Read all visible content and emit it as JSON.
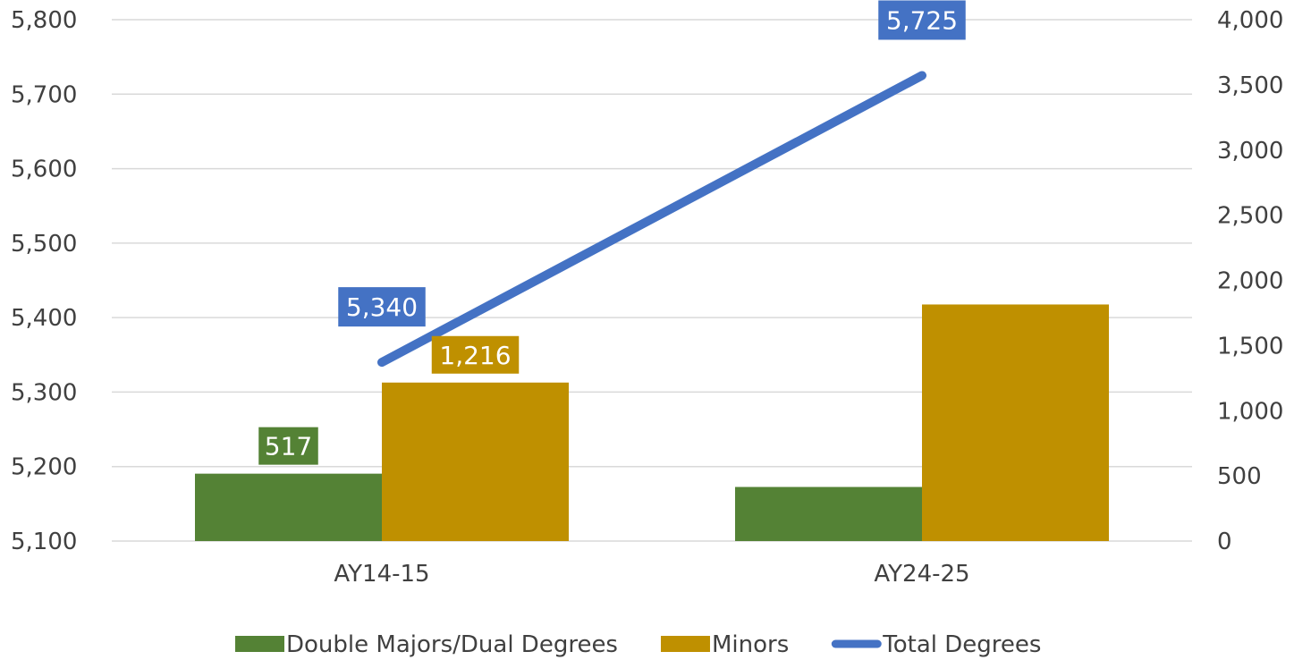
{
  "chart_data": {
    "type": "bar",
    "categories": [
      "AY14-15",
      "AY24-25"
    ],
    "series": [
      {
        "name": "Double Majors/Dual Degrees",
        "chart_type": "bar",
        "axis": "secondary",
        "values": [
          517,
          415
        ],
        "labels": [
          "517",
          null
        ],
        "color": "#548235"
      },
      {
        "name": "Minors",
        "chart_type": "bar",
        "axis": "secondary",
        "values": [
          1216,
          1815
        ],
        "labels": [
          "1,216",
          null
        ],
        "color": "#bf9000"
      },
      {
        "name": "Total Degrees",
        "chart_type": "line",
        "axis": "primary",
        "values": [
          5340,
          5725
        ],
        "labels": [
          "5,340",
          "5,725"
        ],
        "color": "#4472c4"
      }
    ],
    "primary_axis": {
      "min": 5100,
      "max": 5800,
      "step": 100,
      "tick_labels": [
        "5,100",
        "5,200",
        "5,300",
        "5,400",
        "5,500",
        "5,600",
        "5,700",
        "5,800"
      ]
    },
    "secondary_axis": {
      "min": 0,
      "max": 4000,
      "step": 500,
      "tick_labels": [
        "0",
        "500",
        "1,000",
        "1,500",
        "2,000",
        "2,500",
        "3,000",
        "3,500",
        "4,000"
      ]
    },
    "grid": true,
    "legend": "bottom"
  }
}
